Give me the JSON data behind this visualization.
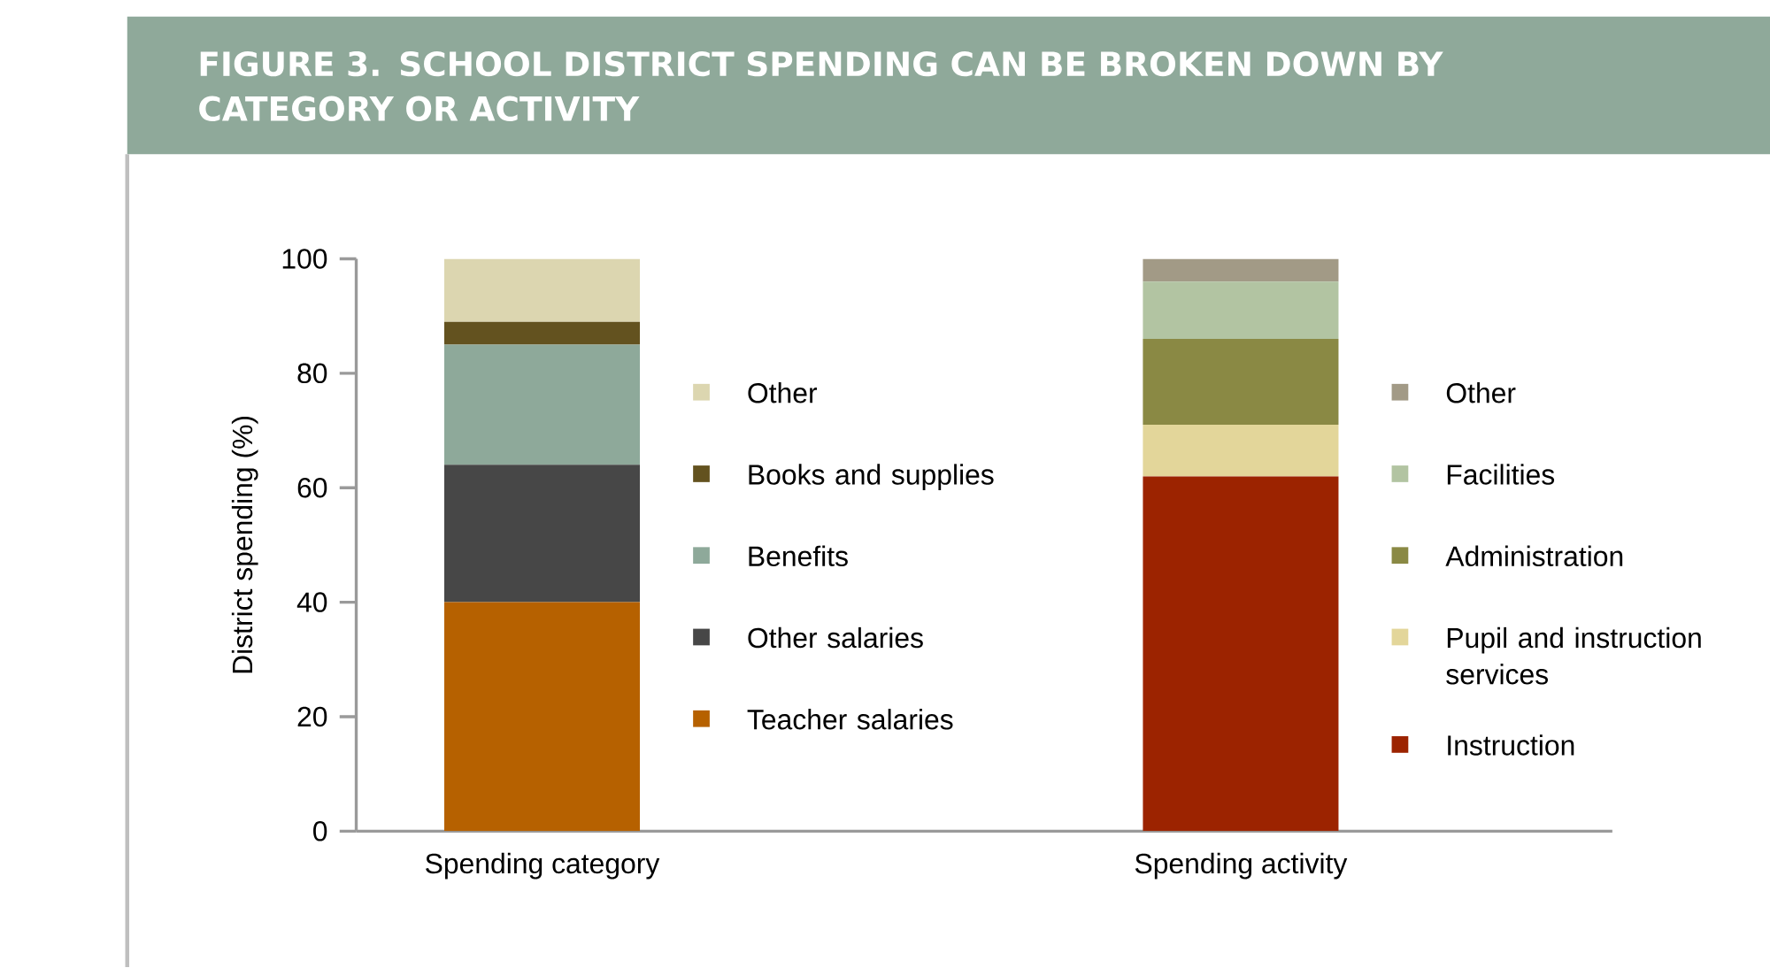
{
  "chart_data": {
    "type": "bar",
    "title": "FIGURE 3. SCHOOL DISTRICT SPENDING CAN BE BROKEN DOWN BY CATEGORY OR ACTIVITY",
    "ylabel": "District spending (%)",
    "categories": [
      "Spending category",
      "Spending activity"
    ],
    "stacked": true,
    "legend": "right",
    "ylim": [
      0,
      100
    ],
    "yticks": [
      0,
      20,
      40,
      60,
      80,
      100
    ],
    "series": [
      {
        "name": "Teacher salaries",
        "color": "#b66100",
        "values": [
          40,
          null
        ]
      },
      {
        "name": "Other salaries",
        "color": "#474747",
        "values": [
          24,
          null
        ]
      },
      {
        "name": "Benefits",
        "color": "#8ea99a",
        "values": [
          21,
          null
        ]
      },
      {
        "name": "Books and supplies",
        "color": "#63521f",
        "values": [
          4,
          null
        ]
      },
      {
        "name": "Other",
        "color": "#dcd6b0",
        "values": [
          11,
          null
        ]
      },
      {
        "name": "Instruction",
        "color": "#9c2300",
        "values": [
          null,
          62
        ]
      },
      {
        "name": "Pupil and instruction services",
        "color": "#e3d69a",
        "values": [
          null,
          9
        ]
      },
      {
        "name": "Administration",
        "color": "#8a8944",
        "values": [
          null,
          15
        ]
      },
      {
        "name": "Facilities",
        "color": "#b2c4a2",
        "values": [
          null,
          10
        ]
      },
      {
        "name": "Other",
        "color": "#a29a86",
        "values": [
          null,
          4
        ]
      }
    ]
  }
}
